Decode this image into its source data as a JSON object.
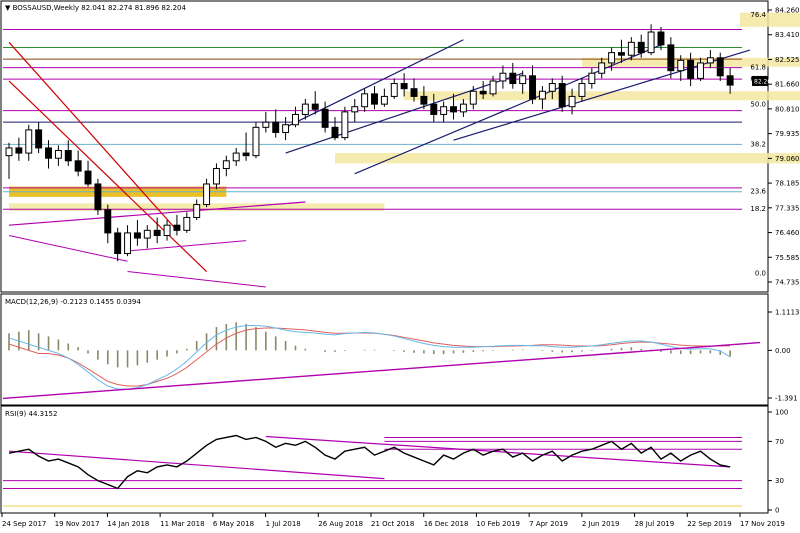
{
  "header": {
    "title": "▼ BOSSAUSD,Weekly  82.041 82.274 81.896 82.204"
  },
  "macd_header": "MACD(12,26,9) -0.2123 0.1455 0.0394",
  "rsi_header": "RSI(9) 44.3152",
  "colors": {
    "up": "#000000",
    "down": "#000000",
    "bull_body": "#ffffff",
    "bear_body": "#000000",
    "trend_purple": "#b000b0",
    "channel_navy": "#1a1a6e",
    "red_line": "#d00000",
    "fib_blue": "#66b2cc",
    "zone_yellow": "#f5e7a0",
    "zone_orange": "#e8b500",
    "green_line": "#2e8b2e",
    "brown_line": "#8b4513",
    "macd_signal": "#e06060",
    "macd_main": "#66b8e8",
    "hist": "#888866"
  },
  "chart_data": [
    {
      "type": "candlestick",
      "title": "BOSSAUSD,Weekly",
      "ylim": [
        74.2,
        84.8
      ],
      "y_ticks": [
        "84.260",
        "83.410",
        "82.525",
        "81.660",
        "80.810",
        "79.935",
        "79.060",
        "78.185",
        "77.335",
        "76.460",
        "75.585",
        "74.735"
      ],
      "current_price": "82.204",
      "ohlc": [
        [
          79.3,
          79.8,
          78.4,
          79.6
        ],
        [
          79.6,
          80.0,
          79.1,
          79.4
        ],
        [
          79.4,
          80.5,
          79.1,
          80.3
        ],
        [
          80.3,
          80.6,
          79.4,
          79.6
        ],
        [
          79.6,
          79.9,
          78.8,
          79.2
        ],
        [
          79.2,
          79.7,
          78.9,
          79.5
        ],
        [
          79.5,
          79.9,
          78.9,
          79.1
        ],
        [
          79.1,
          79.5,
          78.5,
          78.7
        ],
        [
          78.7,
          79.1,
          78.1,
          78.2
        ],
        [
          78.2,
          78.4,
          77.0,
          77.2
        ],
        [
          77.2,
          77.4,
          75.9,
          76.3
        ],
        [
          76.3,
          76.5,
          75.2,
          75.5
        ],
        [
          75.5,
          76.6,
          75.4,
          76.3
        ],
        [
          76.3,
          76.8,
          75.8,
          76.1
        ],
        [
          76.1,
          76.6,
          75.7,
          76.4
        ],
        [
          76.4,
          76.9,
          75.9,
          76.2
        ],
        [
          76.2,
          76.8,
          76.0,
          76.6
        ],
        [
          76.6,
          77.0,
          76.2,
          76.4
        ],
        [
          76.4,
          77.1,
          76.3,
          76.9
        ],
        [
          76.9,
          77.6,
          76.8,
          77.4
        ],
        [
          77.4,
          78.4,
          77.3,
          78.2
        ],
        [
          78.2,
          79.0,
          78.0,
          78.8
        ],
        [
          78.8,
          79.3,
          78.5,
          79.1
        ],
        [
          79.1,
          79.6,
          78.9,
          79.4
        ],
        [
          79.4,
          80.2,
          79.1,
          79.3
        ],
        [
          79.3,
          80.6,
          79.2,
          80.4
        ],
        [
          80.4,
          81.0,
          80.2,
          80.6
        ],
        [
          80.6,
          81.1,
          80.0,
          80.2
        ],
        [
          80.2,
          80.8,
          79.9,
          80.5
        ],
        [
          80.5,
          81.2,
          80.4,
          80.9
        ],
        [
          80.9,
          81.5,
          80.7,
          81.3
        ],
        [
          81.3,
          81.8,
          80.9,
          81.1
        ],
        [
          81.1,
          81.4,
          80.2,
          80.4
        ],
        [
          80.4,
          80.8,
          79.9,
          80.0
        ],
        [
          80.0,
          81.2,
          79.9,
          81.0
        ],
        [
          81.0,
          81.5,
          80.6,
          81.2
        ],
        [
          81.2,
          81.9,
          81.0,
          81.7
        ],
        [
          81.7,
          82.0,
          81.1,
          81.3
        ],
        [
          81.3,
          81.9,
          81.2,
          81.6
        ],
        [
          81.6,
          82.3,
          81.5,
          82.1
        ],
        [
          82.1,
          82.5,
          81.6,
          81.9
        ],
        [
          81.9,
          82.3,
          81.4,
          81.6
        ],
        [
          81.6,
          82.0,
          81.1,
          81.3
        ],
        [
          81.3,
          81.7,
          80.6,
          80.9
        ],
        [
          80.9,
          81.4,
          80.6,
          81.2
        ],
        [
          81.2,
          81.7,
          80.7,
          81.0
        ],
        [
          81.0,
          81.5,
          80.8,
          81.3
        ],
        [
          81.3,
          82.0,
          81.1,
          81.8
        ],
        [
          81.8,
          82.2,
          81.5,
          81.7
        ],
        [
          81.7,
          82.4,
          81.6,
          82.2
        ],
        [
          82.2,
          82.8,
          81.9,
          82.5
        ],
        [
          82.5,
          82.9,
          81.9,
          82.1
        ],
        [
          82.1,
          82.6,
          81.7,
          82.4
        ],
        [
          82.4,
          82.8,
          81.3,
          81.5
        ],
        [
          81.5,
          82.0,
          81.1,
          81.8
        ],
        [
          81.8,
          82.3,
          81.5,
          82.1
        ],
        [
          82.1,
          82.4,
          81.0,
          81.2
        ],
        [
          81.2,
          81.9,
          80.9,
          81.6
        ],
        [
          81.6,
          82.3,
          81.4,
          82.1
        ],
        [
          82.1,
          82.7,
          81.9,
          82.5
        ],
        [
          82.5,
          83.1,
          82.3,
          82.9
        ],
        [
          82.9,
          83.5,
          82.6,
          83.3
        ],
        [
          83.3,
          83.8,
          82.9,
          83.2
        ],
        [
          83.2,
          83.9,
          83.0,
          83.7
        ],
        [
          83.7,
          84.0,
          83.1,
          83.3
        ],
        [
          83.3,
          84.4,
          83.2,
          84.1
        ],
        [
          84.1,
          84.3,
          83.4,
          83.6
        ],
        [
          83.6,
          83.9,
          82.3,
          82.6
        ],
        [
          82.6,
          83.2,
          82.2,
          83.0
        ],
        [
          83.0,
          83.3,
          82.0,
          82.3
        ],
        [
          82.3,
          83.1,
          82.2,
          82.9
        ],
        [
          82.9,
          83.4,
          82.7,
          83.1
        ],
        [
          83.1,
          83.3,
          82.2,
          82.4
        ],
        [
          82.4,
          82.7,
          81.7,
          82.04
        ]
      ],
      "x_tick_labels": [
        "24 Sep 2017",
        "19 Nov 2017",
        "14 Jan 2018",
        "11 Mar 2018",
        "6 May 2018",
        "1 Jul 2018",
        "26 Aug 2018",
        "21 Oct 2018",
        "16 Dec 2018",
        "10 Feb 2019",
        "7 Apr 2019",
        "2 Jun 2019",
        "28 Jul 2019",
        "22 Sep 2019",
        "17 Nov 2019"
      ],
      "fib_labels": [
        {
          "label": "76.4",
          "price": 84.76
        },
        {
          "label": "61.8",
          "price": 82.72
        },
        {
          "label": "60.0",
          "price": 82.27
        },
        {
          "label": "50.0",
          "price": 81.28
        },
        {
          "label": "38.2",
          "price": 79.74
        },
        {
          "label": "23.6",
          "price": 77.9
        },
        {
          "label": "18.2",
          "price": 77.22
        },
        {
          "label": "0.0",
          "price": 74.73
        }
      ],
      "horizontal_levels": [
        {
          "price": 84.2,
          "color": "#b000b0"
        },
        {
          "price": 83.5,
          "color": "#2e8b2e"
        },
        {
          "price": 83.05,
          "color": "#8b4513"
        },
        {
          "price": 82.72,
          "color": "#b000b0"
        },
        {
          "price": 82.27,
          "color": "#b000b0"
        },
        {
          "price": 81.05,
          "color": "#b000b0"
        },
        {
          "price": 80.6,
          "color": "#1a1a6e"
        },
        {
          "price": 79.74,
          "color": "#66b2cc"
        },
        {
          "price": 77.9,
          "color": "#66b2cc"
        },
        {
          "price": 78.05,
          "color": "#b000b0"
        },
        {
          "price": 77.22,
          "color": "#b000b0"
        }
      ]
    },
    {
      "type": "macd",
      "title": "MACD(12,26,9)",
      "values": {
        "main": -0.2123,
        "signal": 0.1455,
        "histogram": 0.0394
      },
      "ylim": [
        -1.6,
        1.3
      ],
      "y_ticks": [
        "1.1113",
        "0.00",
        "-1.391"
      ],
      "histogram": [
        0.55,
        0.6,
        0.65,
        0.55,
        0.45,
        0.35,
        0.22,
        0.1,
        -0.1,
        -0.3,
        -0.45,
        -0.55,
        -0.55,
        -0.48,
        -0.4,
        -0.3,
        -0.2,
        -0.1,
        0.05,
        0.3,
        0.55,
        0.75,
        0.85,
        0.9,
        0.85,
        0.75,
        0.6,
        0.45,
        0.3,
        0.15,
        0.05,
        0.0,
        -0.05,
        -0.05,
        -0.02,
        0.0,
        0.02,
        0.02,
        0.0,
        -0.02,
        -0.05,
        -0.08,
        -0.1,
        -0.12,
        -0.12,
        -0.1,
        -0.08,
        -0.05,
        -0.03,
        -0.02,
        0.0,
        0.02,
        0.02,
        0.0,
        -0.02,
        -0.05,
        -0.07,
        -0.06,
        -0.04,
        -0.02,
        0.0,
        0.05,
        0.08,
        0.1,
        0.05,
        0.02,
        -0.05,
        -0.1,
        -0.12,
        -0.12,
        -0.1,
        -0.1,
        -0.15,
        -0.2
      ],
      "signal": [
        0.2,
        0.1,
        0.0,
        -0.1,
        -0.1,
        -0.15,
        -0.25,
        -0.4,
        -0.6,
        -0.8,
        -1.0,
        -1.1,
        -1.15,
        -1.15,
        -1.1,
        -1.0,
        -0.9,
        -0.75,
        -0.55,
        -0.3,
        -0.05,
        0.2,
        0.4,
        0.55,
        0.65,
        0.7,
        0.72,
        0.72,
        0.7,
        0.68,
        0.66,
        0.62,
        0.58,
        0.55,
        0.55,
        0.56,
        0.56,
        0.55,
        0.52,
        0.48,
        0.42,
        0.36,
        0.3,
        0.24,
        0.2,
        0.16,
        0.14,
        0.12,
        0.12,
        0.12,
        0.13,
        0.14,
        0.15,
        0.16,
        0.18,
        0.18,
        0.17,
        0.15,
        0.14,
        0.14,
        0.15,
        0.18,
        0.22,
        0.25,
        0.27,
        0.26,
        0.23,
        0.2,
        0.17,
        0.15,
        0.14,
        0.14,
        0.14,
        0.1455
      ],
      "main": [
        0.4,
        0.3,
        0.2,
        0.1,
        0.0,
        -0.1,
        -0.25,
        -0.45,
        -0.7,
        -0.95,
        -1.15,
        -1.25,
        -1.25,
        -1.2,
        -1.1,
        -0.95,
        -0.8,
        -0.6,
        -0.35,
        -0.05,
        0.25,
        0.5,
        0.65,
        0.75,
        0.8,
        0.8,
        0.78,
        0.72,
        0.65,
        0.6,
        0.58,
        0.56,
        0.52,
        0.5,
        0.54,
        0.56,
        0.58,
        0.56,
        0.52,
        0.46,
        0.38,
        0.3,
        0.22,
        0.16,
        0.12,
        0.1,
        0.1,
        0.1,
        0.12,
        0.13,
        0.15,
        0.16,
        0.16,
        0.15,
        0.15,
        0.12,
        0.1,
        0.1,
        0.12,
        0.14,
        0.18,
        0.23,
        0.27,
        0.3,
        0.3,
        0.27,
        0.2,
        0.12,
        0.06,
        0.04,
        0.05,
        0.05,
        -0.02,
        -0.2123
      ]
    },
    {
      "type": "rsi",
      "title": "RSI(9)",
      "value": 44.3152,
      "ylim": [
        0,
        100
      ],
      "y_ticks": [
        "100",
        "70",
        "30",
        "0"
      ],
      "values": [
        58,
        60,
        62,
        55,
        50,
        52,
        48,
        44,
        36,
        30,
        26,
        22,
        34,
        40,
        38,
        44,
        46,
        44,
        50,
        58,
        66,
        72,
        74,
        76,
        72,
        74,
        70,
        64,
        68,
        66,
        70,
        64,
        56,
        52,
        60,
        62,
        64,
        56,
        60,
        64,
        58,
        54,
        50,
        46,
        56,
        52,
        58,
        62,
        56,
        60,
        62,
        54,
        58,
        50,
        56,
        60,
        50,
        56,
        60,
        62,
        66,
        70,
        62,
        68,
        58,
        64,
        52,
        58,
        50,
        56,
        60,
        52,
        46,
        44
      ]
    }
  ]
}
